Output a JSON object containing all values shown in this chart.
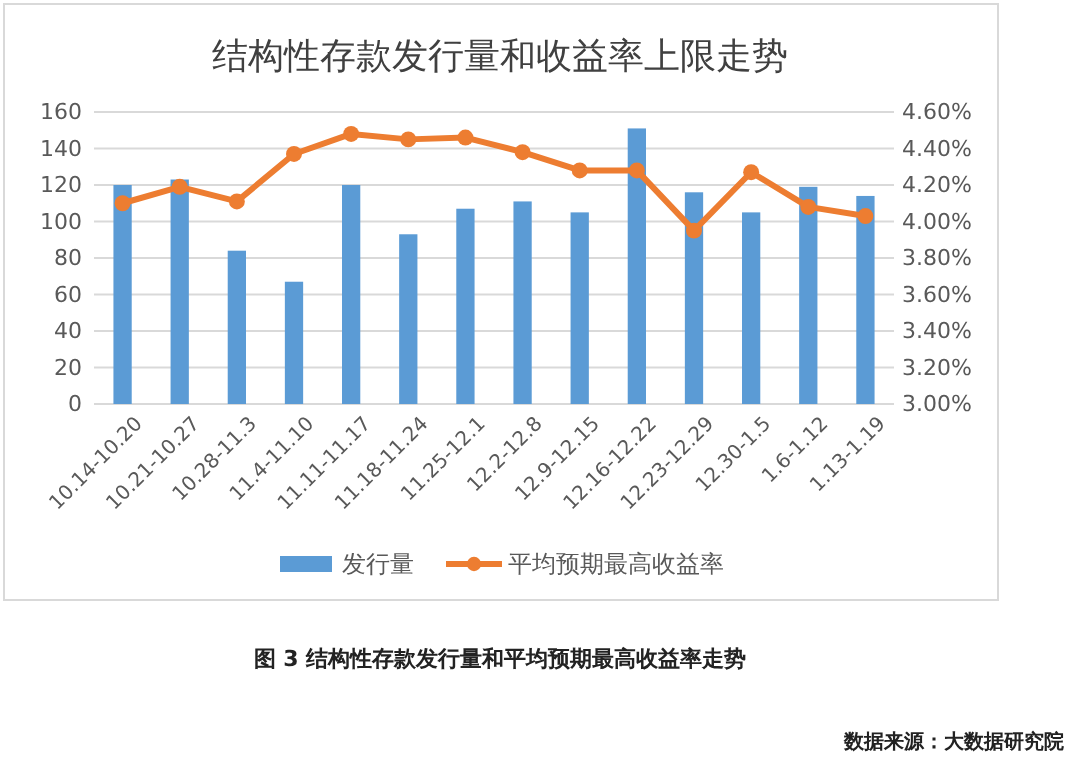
{
  "chart_data": {
    "type": "bar",
    "title": "结构性存款发行量和收益率上限走势",
    "categories": [
      "10.14-10.20",
      "10.21-10.27",
      "10.28-11.3",
      "11.4-11.10",
      "11.11-11.17",
      "11.18-11.24",
      "11.25-12.1",
      "12.2-12.8",
      "12.9-12.15",
      "12.16-12.22",
      "12.23-12.29",
      "12.30-1.5",
      "1.6-1.12",
      "1.13-1.19"
    ],
    "series": [
      {
        "name": "发行量",
        "color": "#5b9bd5",
        "values": [
          120,
          123,
          84,
          67,
          120,
          93,
          107,
          111,
          105,
          151,
          116,
          105,
          119,
          114
        ]
      },
      {
        "name": "平均预期最高收益率",
        "type": "line",
        "axis": "y2",
        "color": "#ed7d31",
        "marker": "circle",
        "values": [
          4.1,
          4.19,
          4.11,
          4.37,
          4.48,
          4.45,
          4.46,
          4.38,
          4.28,
          4.28,
          3.95,
          4.27,
          4.08,
          4.03
        ]
      }
    ],
    "ylim": [
      0,
      160
    ],
    "yticks": [
      0,
      20,
      40,
      60,
      80,
      100,
      120,
      140,
      160
    ],
    "y2lim": [
      3.0,
      4.6
    ],
    "y2ticks": [
      {
        "value": 3.0,
        "label": "3.00%"
      },
      {
        "value": 3.2,
        "label": "3.20%"
      },
      {
        "value": 3.4,
        "label": "3.40%"
      },
      {
        "value": 3.6,
        "label": "3.60%"
      },
      {
        "value": 3.8,
        "label": "3.80%"
      },
      {
        "value": 4.0,
        "label": "4.00%"
      },
      {
        "value": 4.2,
        "label": "4.20%"
      },
      {
        "value": 4.4,
        "label": "4.40%"
      },
      {
        "value": 4.6,
        "label": "4.60%"
      }
    ],
    "grid": "y",
    "legend": "bottom",
    "annotations": [
      "图 3 结构性存款发行量和平均预期最高收益率走势",
      "数据来源：大数据研究院"
    ]
  }
}
